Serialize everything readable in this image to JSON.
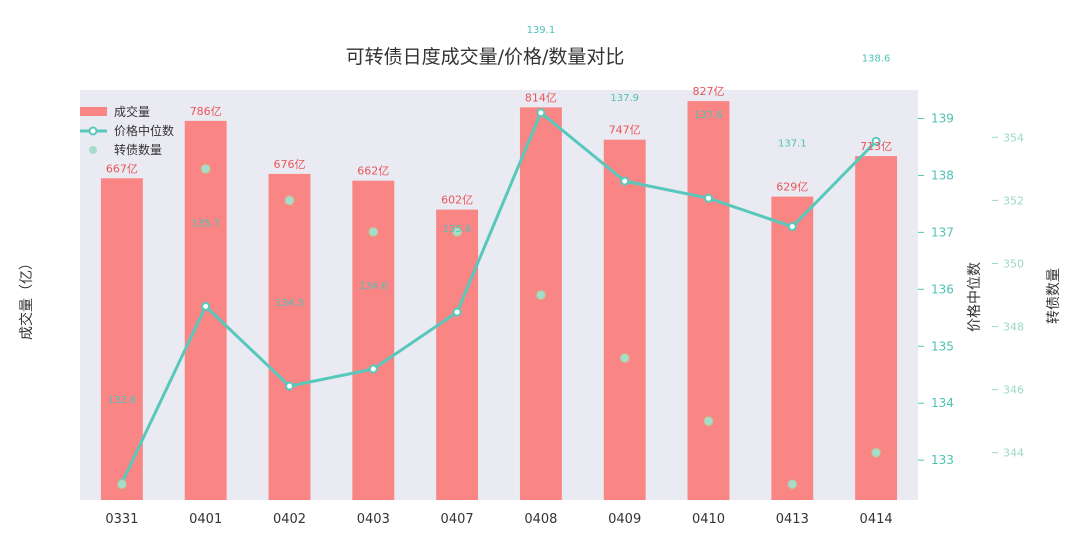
{
  "colors": {
    "bar": "#f98585",
    "bar_label": "#e8565b",
    "line": "#57c8bb",
    "scatter": "#a6dccb",
    "scatter_edge": "#c9ba8a",
    "plot_bg": "#eaeaf2",
    "price_tick": "#4cc3b4",
    "count_tick": "#9ad8c8"
  },
  "chart_data": {
    "type": "bar",
    "title": "可转债日度成交量/价格/数量对比",
    "categories": [
      "0331",
      "0401",
      "0402",
      "0403",
      "0407",
      "0408",
      "0409",
      "0410",
      "0413",
      "0414"
    ],
    "series": [
      {
        "name": "成交量",
        "type": "bar",
        "axis": "left",
        "values": [
          667,
          786,
          676,
          662,
          602,
          814,
          747,
          827,
          629,
          713
        ],
        "labels": [
          "667亿",
          "786亿",
          "676亿",
          "662亿",
          "602亿",
          "814亿",
          "747亿",
          "827亿",
          "629亿",
          "713亿"
        ]
      },
      {
        "name": "价格中位数",
        "type": "line",
        "axis": "right",
        "values": [
          132.6,
          135.7,
          134.3,
          134.6,
          135.6,
          139.1,
          137.9,
          137.6,
          137.1,
          138.6
        ],
        "labels": [
          "132.6",
          "135.7",
          "134.3",
          "134.6",
          "135.6",
          "139.1",
          "137.9",
          "137.6",
          "137.1",
          "138.6"
        ]
      },
      {
        "name": "转债数量",
        "type": "scatter",
        "axis": "right2",
        "values": [
          343,
          353,
          352,
          351,
          351,
          349,
          347,
          345,
          343,
          344
        ]
      }
    ],
    "ylabel_left": "成交量（亿）",
    "ylabel_right": "价格中位数",
    "ylabel_right2": "转债数量",
    "yticks_right": [
      133,
      134,
      135,
      136,
      137,
      138,
      139
    ],
    "yticks_right2": [
      344,
      346,
      348,
      350,
      352,
      354
    ],
    "ylim_left": [
      0,
      850
    ],
    "ylim_right": [
      132.3,
      139.5
    ],
    "ylim_right2": [
      342.5,
      355.5
    ],
    "legend": "top-left",
    "grid": false
  }
}
